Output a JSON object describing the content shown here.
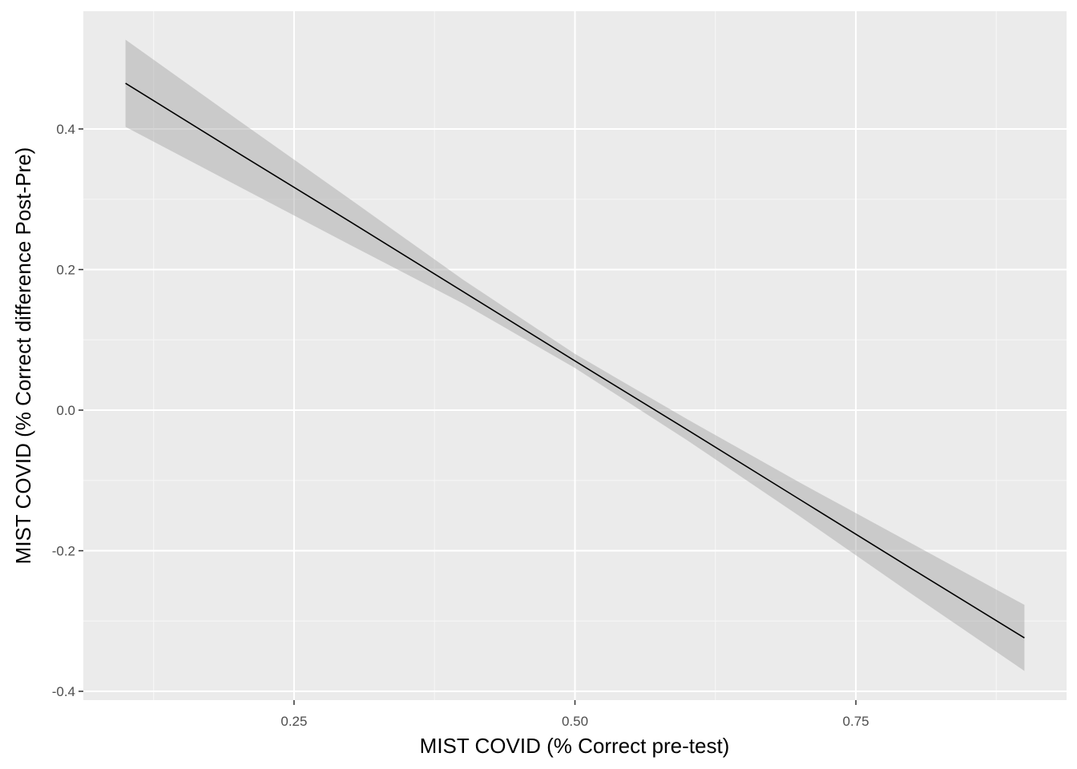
{
  "chart_data": {
    "type": "line",
    "title": "",
    "xlabel": "MIST COVID (% Correct pre-test)",
    "ylabel": "MIST COVID (% Correct difference Post-Pre)",
    "xlim": [
      0.0625,
      0.9375
    ],
    "ylim": [
      -0.4125,
      0.5675
    ],
    "x_ticks": [
      {
        "value": 0.25,
        "label": "0.25"
      },
      {
        "value": 0.5,
        "label": "0.50"
      },
      {
        "value": 0.75,
        "label": "0.75"
      }
    ],
    "x_minor": [
      0.125,
      0.375,
      0.625,
      0.875
    ],
    "y_ticks": [
      {
        "value": -0.4,
        "label": "-0.4"
      },
      {
        "value": -0.2,
        "label": "-0.2"
      },
      {
        "value": 0.0,
        "label": "0.0"
      },
      {
        "value": 0.2,
        "label": "0.2"
      },
      {
        "value": 0.4,
        "label": "0.4"
      }
    ],
    "y_minor": [
      -0.3,
      -0.1,
      0.1,
      0.3
    ],
    "grid": true,
    "series": [
      {
        "x": [
          0.1,
          0.2,
          0.3,
          0.4,
          0.5,
          0.6,
          0.7,
          0.8,
          0.9
        ],
        "y": [
          0.465,
          0.366,
          0.268,
          0.169,
          0.07,
          -0.028,
          -0.127,
          -0.226,
          -0.324
        ],
        "ci_upper": [
          0.527,
          0.413,
          0.3,
          0.186,
          0.08,
          -0.013,
          -0.103,
          -0.19,
          -0.277
        ],
        "ci_lower": [
          0.403,
          0.319,
          0.235,
          0.152,
          0.06,
          -0.043,
          -0.151,
          -0.262,
          -0.371
        ]
      }
    ],
    "colors": {
      "panel_background": "#ebebeb",
      "grid_major": "#ffffff",
      "grid_minor": "#f6f6f6",
      "line": "#000000",
      "ribbon": "#999999",
      "tick_label": "#4d4d4d",
      "tick_mark": "#333333"
    }
  }
}
